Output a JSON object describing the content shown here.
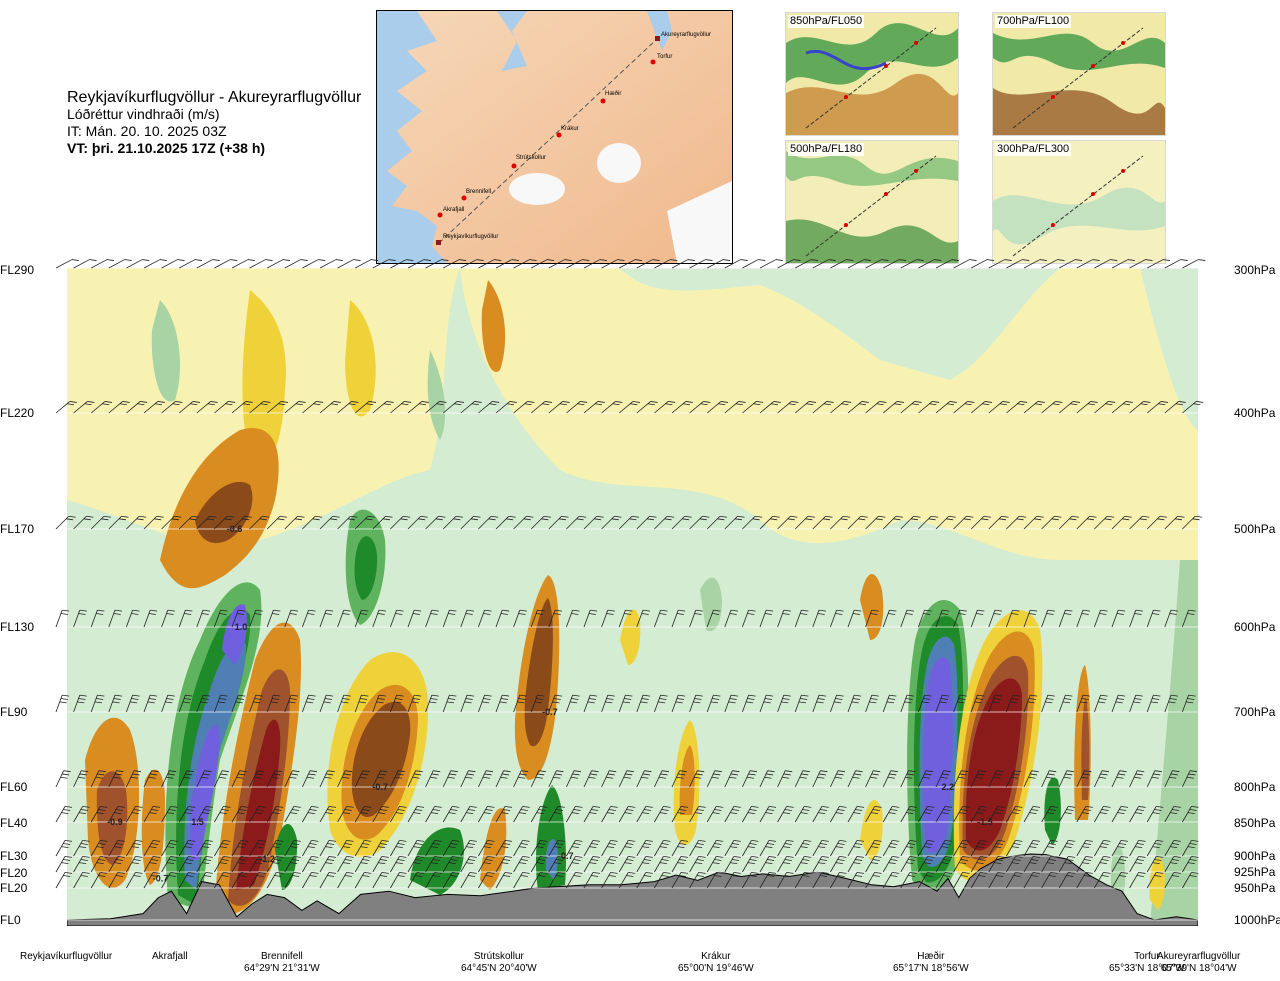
{
  "header": {
    "route": "Reykjavíkurflugvöllur - Akureyrarflugvöllur",
    "parameter": "Lóðréttur vindhraði (m/s)",
    "issue_time": "IT: Mán. 20. 10. 2025 03Z",
    "valid_time": "VT: þri. 21.10.2025 17Z (+38 h)"
  },
  "route_map": {
    "waypoints": [
      "Akureyrarflugvöllur",
      "Torfur",
      "Hæðir",
      "Krákur",
      "Strútskollur",
      "Brennifell",
      "Akrafjall",
      "Reykjavíkurflugvöllur"
    ]
  },
  "thumbnails": [
    {
      "label": "850hPa/FL050"
    },
    {
      "label": "700hPa/FL100"
    },
    {
      "label": "500hPa/FL180"
    },
    {
      "label": "300hPa/FL300"
    }
  ],
  "levels": [
    {
      "fl": "FL290",
      "hpa": "300hPa"
    },
    {
      "fl": "FL220",
      "hpa": "400hPa"
    },
    {
      "fl": "FL170",
      "hpa": "500hPa"
    },
    {
      "fl": "FL130",
      "hpa": "600hPa"
    },
    {
      "fl": "FL90",
      "hpa": "700hPa"
    },
    {
      "fl": "FL60",
      "hpa": "800hPa"
    },
    {
      "fl": "FL40",
      "hpa": "850hPa"
    },
    {
      "fl": "FL30",
      "hpa": "900hPa"
    },
    {
      "fl": "FL20",
      "hpa": "925hPa"
    },
    {
      "fl": "FL20",
      "hpa": "950hPa"
    },
    {
      "fl": "FL0",
      "hpa": "1000hPa"
    }
  ],
  "locations": [
    {
      "name": "Reykjavíkurflugvöllur",
      "coords": ""
    },
    {
      "name": "Akrafjall",
      "coords": ""
    },
    {
      "name": "Brennifell",
      "coords": "64°29'N 21°31'W"
    },
    {
      "name": "Strútskollur",
      "coords": "64°45'N 20°40'W"
    },
    {
      "name": "Krákur",
      "coords": "65°00'N 19°46'W"
    },
    {
      "name": "Hæðir",
      "coords": "65°17'N 18°56'W"
    },
    {
      "name": "Torfur",
      "coords": "65°33'N 18°07'W"
    },
    {
      "name": "Akureyrarflugvöllur",
      "coords": "65°39'N 18°04'W"
    }
  ],
  "chart_data": {
    "type": "heatmap",
    "title": "Reykjavíkurflugvöllur - Akureyrarflugvöllur",
    "subtitle": "Lóðréttur vindhraði (m/s)",
    "x_axis": "route position",
    "y_axis_left": [
      "FL290",
      "FL220",
      "FL170",
      "FL130",
      "FL90",
      "FL60",
      "FL40",
      "FL30",
      "FL20",
      "FL20",
      "FL0"
    ],
    "y_axis_right_hpa": [
      300,
      400,
      500,
      600,
      700,
      800,
      850,
      900,
      925,
      950,
      1000
    ],
    "colors": {
      "strong_sink": "#8b1a1a",
      "sink_3": "#a0522d",
      "sink_2": "#d98c1f",
      "sink_1": "#efd23a",
      "weak_sink": "#f7f2b2",
      "weak_rise": "#d4ecd2",
      "rise_1": "#a8d3a5",
      "rise_2": "#5fb35f",
      "rise_3": "#1f8a2a",
      "rise_4": "#4f7fb5",
      "strong_rise": "#7060dd",
      "terrain": "#808080"
    },
    "annotations": [
      {
        "text": "-0.9",
        "route_km": 22,
        "pressure_hpa": 850
      },
      {
        "text": "-0.7",
        "route_km": 43,
        "pressure_hpa": 935
      },
      {
        "text": "1.5",
        "route_km": 60,
        "pressure_hpa": 850
      },
      {
        "text": "1.0",
        "route_km": 80,
        "pressure_hpa": 600
      },
      {
        "text": "-0.6",
        "route_km": 77,
        "pressure_hpa": 500
      },
      {
        "text": "-1.2",
        "route_km": 92,
        "pressure_hpa": 905
      },
      {
        "text": "-0.7",
        "route_km": 144,
        "pressure_hpa": 800
      },
      {
        "text": "-0.7",
        "route_km": 222,
        "pressure_hpa": 700
      },
      {
        "text": "0.7",
        "route_km": 230,
        "pressure_hpa": 900
      },
      {
        "text": "2.2",
        "route_km": 405,
        "pressure_hpa": 800
      },
      {
        "text": "-1.5",
        "route_km": 422,
        "pressure_hpa": 850
      }
    ],
    "terrain_hpa": [
      [
        0,
        1000
      ],
      [
        20,
        998
      ],
      [
        35,
        990
      ],
      [
        42,
        965
      ],
      [
        48,
        955
      ],
      [
        55,
        990
      ],
      [
        62,
        940
      ],
      [
        70,
        945
      ],
      [
        78,
        995
      ],
      [
        85,
        975
      ],
      [
        92,
        960
      ],
      [
        100,
        965
      ],
      [
        108,
        985
      ],
      [
        115,
        970
      ],
      [
        125,
        990
      ],
      [
        135,
        960
      ],
      [
        148,
        955
      ],
      [
        160,
        965
      ],
      [
        175,
        960
      ],
      [
        190,
        962
      ],
      [
        205,
        955
      ],
      [
        215,
        950
      ],
      [
        225,
        948
      ],
      [
        240,
        945
      ],
      [
        255,
        945
      ],
      [
        270,
        940
      ],
      [
        280,
        930
      ],
      [
        290,
        938
      ],
      [
        300,
        925
      ],
      [
        310,
        932
      ],
      [
        320,
        928
      ],
      [
        332,
        932
      ],
      [
        345,
        925
      ],
      [
        358,
        935
      ],
      [
        370,
        945
      ],
      [
        380,
        948
      ],
      [
        392,
        940
      ],
      [
        400,
        955
      ],
      [
        405,
        935
      ],
      [
        410,
        965
      ],
      [
        415,
        935
      ],
      [
        420,
        920
      ],
      [
        428,
        905
      ],
      [
        435,
        900
      ],
      [
        443,
        897
      ],
      [
        450,
        898
      ],
      [
        460,
        905
      ],
      [
        470,
        930
      ],
      [
        478,
        945
      ],
      [
        485,
        955
      ],
      [
        492,
        990
      ],
      [
        500,
        1000
      ],
      [
        510,
        995
      ],
      [
        520,
        1000
      ]
    ]
  }
}
